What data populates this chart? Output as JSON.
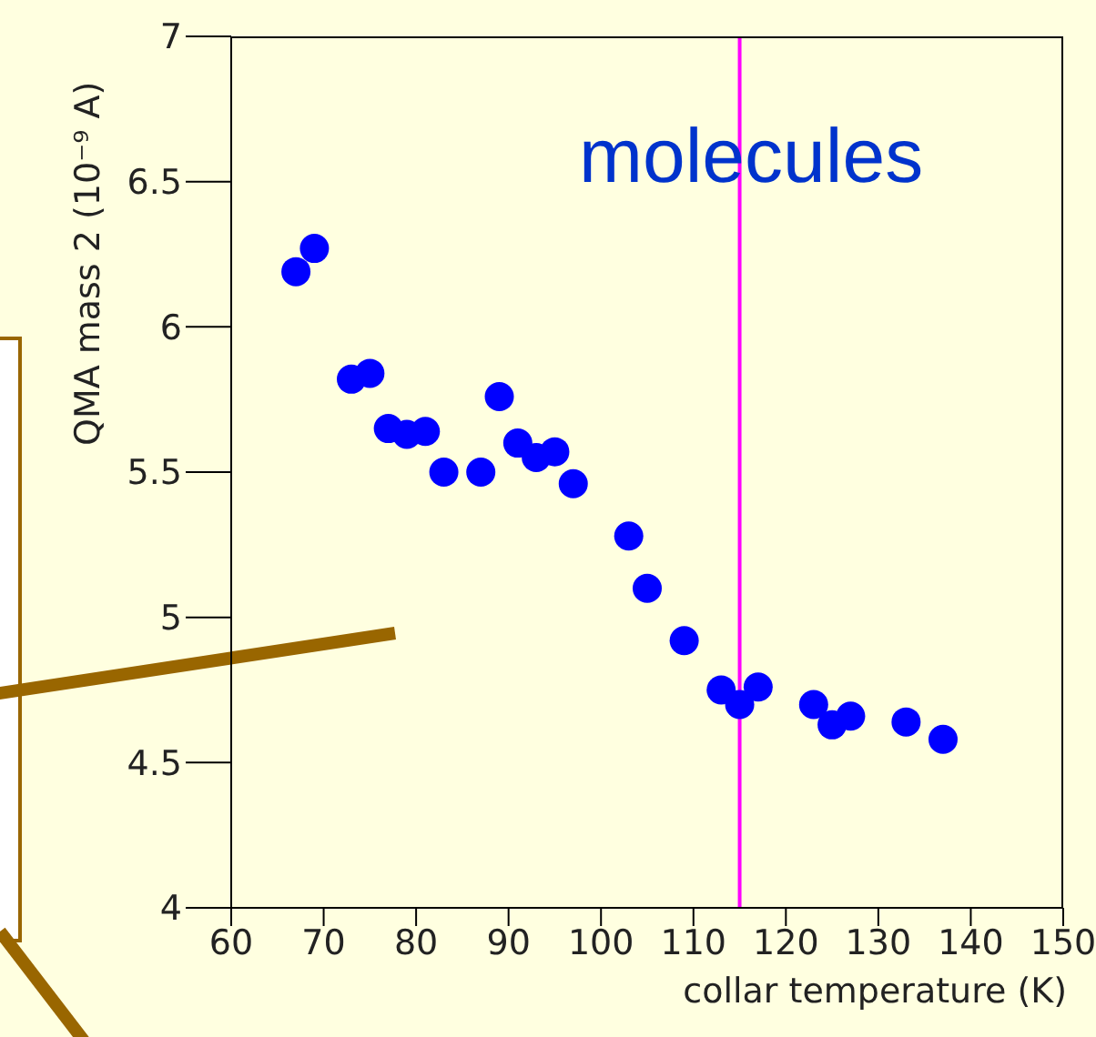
{
  "chart_data": {
    "type": "scatter",
    "xlabel": "collar temperature (K)",
    "ylabel": "QMA mass 2 (10⁻⁹ A)",
    "x": [
      67,
      69,
      73,
      75,
      77,
      79,
      81,
      83,
      87,
      89,
      91,
      93,
      95,
      97,
      103,
      105,
      109,
      113,
      115,
      117,
      123,
      125,
      127,
      133,
      137
    ],
    "series": [
      {
        "color": "#0000ff",
        "values": [
          6.19,
          6.27,
          5.82,
          5.84,
          5.65,
          5.63,
          5.64,
          5.5,
          5.5,
          5.76,
          5.6,
          5.55,
          5.57,
          5.46,
          5.28,
          5.1,
          4.92,
          4.75,
          4.7,
          4.76,
          4.7,
          4.63,
          4.66,
          4.64,
          4.58
        ]
      }
    ],
    "xlim": [
      60,
      150
    ],
    "xticks": [
      60,
      70,
      80,
      90,
      100,
      110,
      120,
      130,
      140,
      150
    ],
    "ylim": [
      4,
      7
    ],
    "yticks": [
      4,
      4.5,
      5,
      5.5,
      6,
      6.5,
      7
    ],
    "ref_lines": [
      {
        "axis": "x",
        "value": 115,
        "color": "#ff00ff"
      }
    ],
    "annotations": [
      "molecules"
    ],
    "marker": "circle",
    "grid": false,
    "legend": false
  }
}
